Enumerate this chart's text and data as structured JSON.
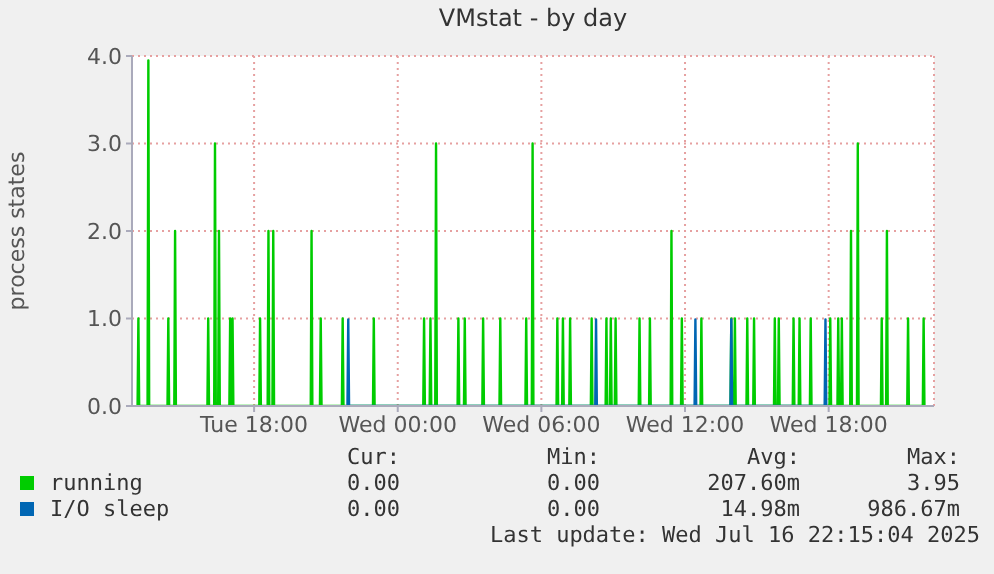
{
  "chart_data": {
    "type": "line",
    "title": "VMstat - by day",
    "ylabel": "process states",
    "xlim": [
      "2025-07-15T12:54",
      "2025-07-16T22:24"
    ],
    "xticks": [
      {
        "value": "2025-07-15T18:00",
        "label": "Tue 18:00"
      },
      {
        "value": "2025-07-16T00:00",
        "label": "Wed 00:00"
      },
      {
        "value": "2025-07-16T06:00",
        "label": "Wed 06:00"
      },
      {
        "value": "2025-07-16T12:00",
        "label": "Wed 12:00"
      },
      {
        "value": "2025-07-16T18:00",
        "label": "Wed 18:00"
      }
    ],
    "ylim": [
      0,
      4
    ],
    "yticks": [
      {
        "value": 0,
        "label": "0.0"
      },
      {
        "value": 1,
        "label": "1.0"
      },
      {
        "value": 2,
        "label": "2.0"
      },
      {
        "value": 3,
        "label": "3.0"
      },
      {
        "value": 4,
        "label": "4.0"
      }
    ],
    "grid": true,
    "legend": "bottom",
    "annotations": [
      "Cur:",
      "Min:",
      "Avg:",
      "Max:",
      "0.00",
      "0.00",
      "207.60m",
      "3.95",
      "0.00",
      "0.00",
      "14.98m",
      "986.67m",
      "Last update: Wed Jul 16 22:15:04 2025"
    ],
    "series": [
      {
        "name": "running",
        "color": "#00cc00",
        "x": [
          "2025-07-15T13:08",
          "2025-07-15T13:10",
          "2025-07-15T13:12",
          "2025-07-15T13:33",
          "2025-07-15T13:35",
          "2025-07-15T13:37",
          "2025-07-15T14:23",
          "2025-07-15T14:25",
          "2025-07-15T14:27",
          "2025-07-15T14:40",
          "2025-07-15T14:42",
          "2025-07-15T14:44",
          "2025-07-15T16:03",
          "2025-07-15T16:05",
          "2025-07-15T16:07",
          "2025-07-15T16:20",
          "2025-07-15T16:22",
          "2025-07-15T16:24",
          "2025-07-15T16:30",
          "2025-07-15T16:32",
          "2025-07-15T16:34",
          "2025-07-15T16:58",
          "2025-07-15T17:00",
          "2025-07-15T17:02",
          "2025-07-15T17:04",
          "2025-07-15T17:06",
          "2025-07-15T17:08",
          "2025-07-15T18:13",
          "2025-07-15T18:15",
          "2025-07-15T18:17",
          "2025-07-15T18:34",
          "2025-07-15T18:36",
          "2025-07-15T18:38",
          "2025-07-15T18:46",
          "2025-07-15T18:48",
          "2025-07-15T18:50",
          "2025-07-15T20:22",
          "2025-07-15T20:24",
          "2025-07-15T20:26",
          "2025-07-15T20:45",
          "2025-07-15T20:47",
          "2025-07-15T20:49",
          "2025-07-15T21:40",
          "2025-07-15T21:42",
          "2025-07-15T21:44",
          "2025-07-15T22:58",
          "2025-07-15T23:00",
          "2025-07-15T23:02",
          "2025-07-16T01:04",
          "2025-07-16T01:06",
          "2025-07-16T01:08",
          "2025-07-16T01:20",
          "2025-07-16T01:22",
          "2025-07-16T01:24",
          "2025-07-16T01:34",
          "2025-07-16T01:36",
          "2025-07-16T01:38",
          "2025-07-16T02:30",
          "2025-07-16T02:32",
          "2025-07-16T02:34",
          "2025-07-16T02:46",
          "2025-07-16T02:48",
          "2025-07-16T02:50",
          "2025-07-16T03:32",
          "2025-07-16T03:34",
          "2025-07-16T03:36",
          "2025-07-16T04:15",
          "2025-07-16T04:17",
          "2025-07-16T04:19",
          "2025-07-16T05:20",
          "2025-07-16T05:22",
          "2025-07-16T05:24",
          "2025-07-16T05:36",
          "2025-07-16T05:38",
          "2025-07-16T05:40",
          "2025-07-16T06:38",
          "2025-07-16T06:40",
          "2025-07-16T06:42",
          "2025-07-16T06:52",
          "2025-07-16T06:54",
          "2025-07-16T06:56",
          "2025-07-16T07:10",
          "2025-07-16T07:12",
          "2025-07-16T07:14",
          "2025-07-16T08:04",
          "2025-07-16T08:06",
          "2025-07-16T08:08",
          "2025-07-16T08:41",
          "2025-07-16T08:43",
          "2025-07-16T08:45",
          "2025-07-16T08:52",
          "2025-07-16T08:54",
          "2025-07-16T08:56",
          "2025-07-16T09:04",
          "2025-07-16T09:06",
          "2025-07-16T09:08",
          "2025-07-16T10:04",
          "2025-07-16T10:06",
          "2025-07-16T10:08",
          "2025-07-16T10:30",
          "2025-07-16T10:32",
          "2025-07-16T10:34",
          "2025-07-16T11:24",
          "2025-07-16T11:26",
          "2025-07-16T11:28",
          "2025-07-16T11:50",
          "2025-07-16T11:52",
          "2025-07-16T11:54",
          "2025-07-16T12:39",
          "2025-07-16T12:41",
          "2025-07-16T12:43",
          "2025-07-16T13:54",
          "2025-07-16T13:56",
          "2025-07-16T13:58",
          "2025-07-16T14:03",
          "2025-07-16T14:05",
          "2025-07-16T14:07",
          "2025-07-16T14:34",
          "2025-07-16T14:36",
          "2025-07-16T14:38",
          "2025-07-16T14:51",
          "2025-07-16T14:53",
          "2025-07-16T14:55",
          "2025-07-16T15:43",
          "2025-07-16T15:45",
          "2025-07-16T15:47",
          "2025-07-16T15:53",
          "2025-07-16T15:55",
          "2025-07-16T15:57",
          "2025-07-16T16:30",
          "2025-07-16T16:32",
          "2025-07-16T16:34",
          "2025-07-16T16:45",
          "2025-07-16T16:47",
          "2025-07-16T16:49",
          "2025-07-16T17:13",
          "2025-07-16T17:15",
          "2025-07-16T17:17",
          "2025-07-16T18:02",
          "2025-07-16T18:04",
          "2025-07-16T18:06",
          "2025-07-16T18:22",
          "2025-07-16T18:24",
          "2025-07-16T18:26",
          "2025-07-16T18:31",
          "2025-07-16T18:33",
          "2025-07-16T18:35",
          "2025-07-16T18:54",
          "2025-07-16T18:56",
          "2025-07-16T18:58",
          "2025-07-16T19:11",
          "2025-07-16T19:13",
          "2025-07-16T19:15",
          "2025-07-16T20:11",
          "2025-07-16T20:13",
          "2025-07-16T20:15",
          "2025-07-16T20:24",
          "2025-07-16T20:26",
          "2025-07-16T20:28",
          "2025-07-16T21:17",
          "2025-07-16T21:19",
          "2025-07-16T21:21",
          "2025-07-16T21:56",
          "2025-07-16T21:58",
          "2025-07-16T22:00"
        ],
        "values": [
          0,
          1,
          0,
          0,
          3.95,
          0,
          0,
          1,
          0,
          0,
          2,
          0,
          0,
          1,
          0,
          0,
          3,
          0,
          0,
          2,
          0,
          0,
          1,
          0,
          0,
          1,
          0,
          0,
          1,
          0,
          0,
          2,
          0,
          0,
          2,
          0,
          0,
          2,
          0,
          0,
          1,
          0,
          0,
          1,
          0,
          0,
          1,
          0,
          0,
          1,
          0,
          0,
          1,
          0,
          0,
          3,
          0,
          0,
          1,
          0,
          0,
          1,
          0,
          0,
          1,
          0,
          0,
          1,
          0,
          0,
          1,
          0,
          0,
          3,
          0,
          0,
          1,
          0,
          0,
          1,
          0,
          0,
          1,
          0,
          0,
          1,
          0,
          0,
          1,
          0,
          0,
          1,
          0,
          0,
          1,
          0,
          0,
          1,
          0,
          0,
          1,
          0,
          0,
          2,
          0,
          0,
          1,
          0,
          0,
          1,
          0,
          0,
          1,
          0,
          0,
          1,
          0,
          0,
          1,
          0,
          0,
          1,
          0,
          0,
          1,
          0,
          0,
          1,
          0,
          0,
          1,
          0,
          0,
          1,
          0,
          0,
          1,
          0,
          0,
          1,
          0,
          0,
          1,
          0,
          0,
          1,
          0,
          0,
          2,
          0,
          0,
          3,
          0,
          0,
          1,
          0,
          0,
          2,
          0,
          0,
          1,
          0,
          0,
          1,
          0
        ]
      },
      {
        "name": "I/O sleep",
        "color": "#0066b3",
        "x": [
          "2025-07-15T21:54",
          "2025-07-15T21:56",
          "2025-07-15T21:58",
          "2025-07-16T08:15",
          "2025-07-16T08:17",
          "2025-07-16T08:19",
          "2025-07-16T12:24",
          "2025-07-16T12:26",
          "2025-07-16T12:28",
          "2025-07-16T13:54",
          "2025-07-16T13:56",
          "2025-07-16T13:58",
          "2025-07-16T17:50",
          "2025-07-16T17:52",
          "2025-07-16T17:54"
        ],
        "values": [
          0,
          0.99,
          0,
          0,
          0.99,
          0,
          0,
          0.99,
          0,
          0,
          0.99,
          0,
          0,
          0.99,
          0
        ]
      }
    ]
  }
}
